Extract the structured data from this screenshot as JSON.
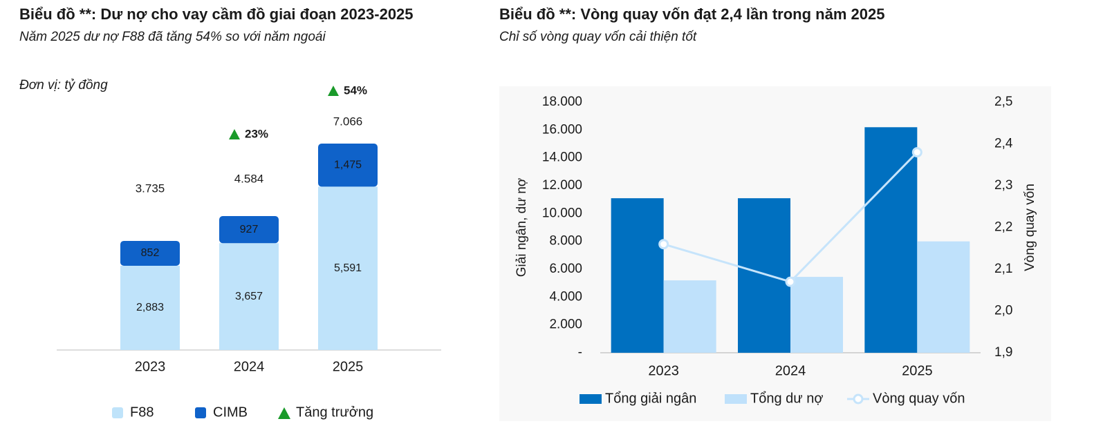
{
  "chart_data": [
    {
      "type": "stacked_bar",
      "title": "Biểu đồ **: Dư nợ cho vay cầm đồ giai đoạn 2023-2025",
      "subtitle": "Năm 2025 dư nợ F88 đã tăng 54% so với năm ngoái",
      "unit_note": "Đơn vị: tỷ đồng",
      "categories": [
        "2023",
        "2024",
        "2025"
      ],
      "series": [
        {
          "name": "F88",
          "color": "#bfe3fa",
          "values": [
            2883,
            3657,
            5591
          ],
          "value_labels": [
            "2,883",
            "3,657",
            "5,591"
          ]
        },
        {
          "name": "CIMB",
          "color": "#0f62c9",
          "values": [
            852,
            927,
            1475
          ],
          "value_labels": [
            "852",
            "927",
            "1,475"
          ]
        }
      ],
      "totals": {
        "values": [
          3735,
          4584,
          7066
        ],
        "value_labels": [
          "3.735",
          "4.584",
          "7.066"
        ]
      },
      "growth": {
        "name": "Tăng trưởng",
        "color": "#1a9a2a",
        "values": [
          null,
          23,
          54
        ],
        "value_labels": [
          null,
          "23%",
          "54%"
        ]
      }
    },
    {
      "type": "bar_line",
      "title": "Biểu đồ **: Vòng quay vốn đạt 2,4 lần trong năm 2025",
      "subtitle": "Chỉ số vòng quay vốn cải thiện tốt",
      "categories": [
        "2023",
        "2024",
        "2025"
      ],
      "ylabel": "Giải ngân, dư nợ",
      "y2label": "Vòng quay vốn",
      "ylim": [
        0,
        18000
      ],
      "yticks": [
        {
          "value": 0,
          "label": "-"
        },
        {
          "value": 2000,
          "label": "2.000"
        },
        {
          "value": 4000,
          "label": "4.000"
        },
        {
          "value": 6000,
          "label": "6.000"
        },
        {
          "value": 8000,
          "label": "8.000"
        },
        {
          "value": 10000,
          "label": "10.000"
        },
        {
          "value": 12000,
          "label": "12.000"
        },
        {
          "value": 14000,
          "label": "14.000"
        },
        {
          "value": 16000,
          "label": "16.000"
        },
        {
          "value": 18000,
          "label": "18.000"
        }
      ],
      "y2lim": [
        1.9,
        2.5
      ],
      "y2ticks": [
        {
          "value": 1.9,
          "label": "1,9"
        },
        {
          "value": 2.0,
          "label": "2,0"
        },
        {
          "value": 2.1,
          "label": "2,1"
        },
        {
          "value": 2.2,
          "label": "2,2"
        },
        {
          "value": 2.3,
          "label": "2,3"
        },
        {
          "value": 2.4,
          "label": "2,4"
        },
        {
          "value": 2.5,
          "label": "2,5"
        }
      ],
      "series": [
        {
          "name": "Tổng giải ngân",
          "color": "#0070c0",
          "values": [
            11100,
            11100,
            16200
          ]
        },
        {
          "name": "Tổng dư nợ",
          "color": "#bfe1fb",
          "values": [
            5200,
            5450,
            8000
          ]
        },
        {
          "name": "Vòng quay vốn",
          "color": "#c6e4fb",
          "axis": "y2",
          "values": [
            2.16,
            2.07,
            2.38
          ]
        }
      ]
    }
  ]
}
